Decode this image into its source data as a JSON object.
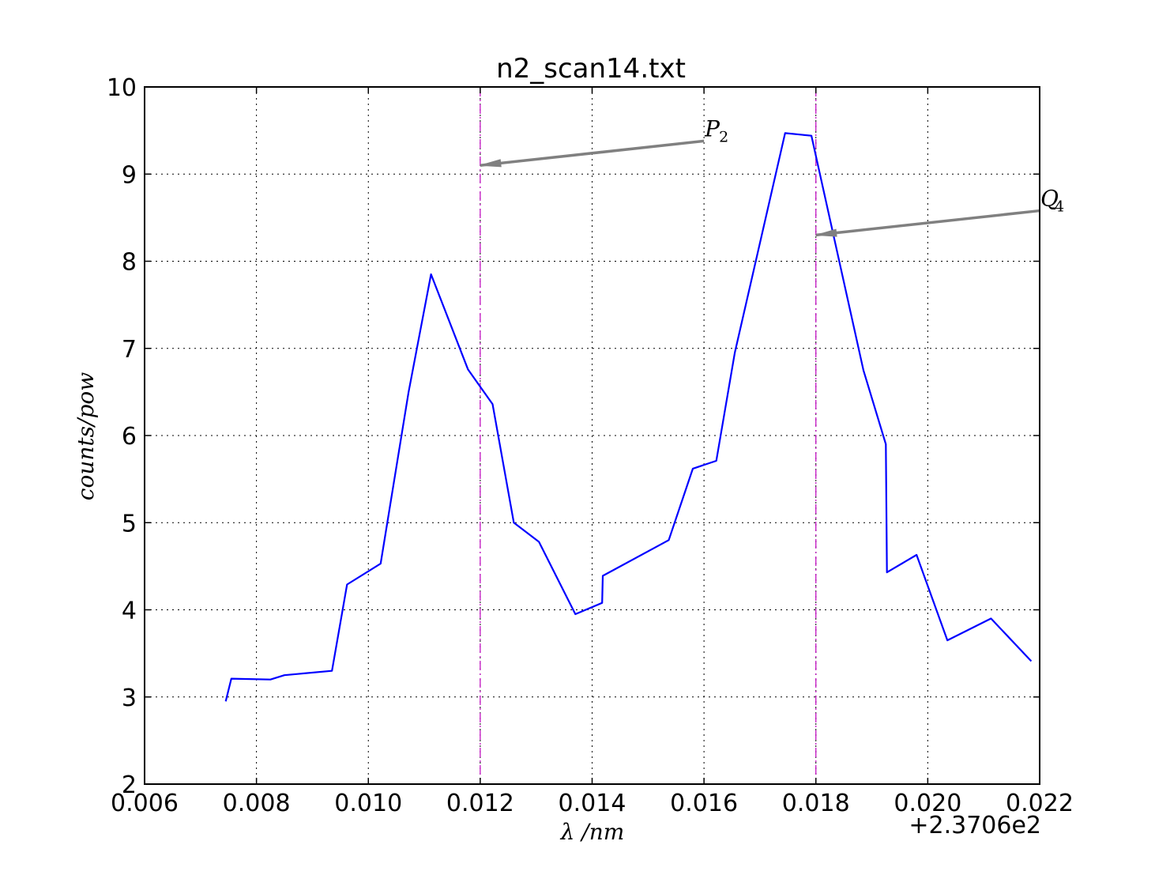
{
  "chart_data": {
    "type": "line",
    "title": "n2_scan14.txt",
    "xlabel": "λ /nm",
    "ylabel": "counts/pow",
    "x_offset_label": "+2.3706e2",
    "xlim": [
      0.006,
      0.022
    ],
    "ylim": [
      2,
      10
    ],
    "x_ticks": [
      "0.006",
      "0.008",
      "0.010",
      "0.012",
      "0.014",
      "0.016",
      "0.018",
      "0.020",
      "0.022"
    ],
    "y_ticks": [
      "2",
      "3",
      "4",
      "5",
      "6",
      "7",
      "8",
      "9",
      "10"
    ],
    "grid": true,
    "line_color": "#0000ff",
    "series": [
      {
        "x": [
          0.00745,
          0.00755,
          0.00825,
          0.0085,
          0.00935,
          0.00962,
          0.01022,
          0.01072,
          0.01112,
          0.01178,
          0.01222,
          0.0126,
          0.01305,
          0.0137,
          0.01418,
          0.01419,
          0.01537,
          0.0158,
          0.01622,
          0.01655,
          0.01745,
          0.01792,
          0.01885,
          0.01925,
          0.01927,
          0.0198,
          0.02035,
          0.02113,
          0.02185
        ],
        "y": [
          2.95,
          3.21,
          3.2,
          3.25,
          3.3,
          4.29,
          4.53,
          6.5,
          7.85,
          6.76,
          6.36,
          5.0,
          4.78,
          3.95,
          4.08,
          4.39,
          4.8,
          5.62,
          5.71,
          6.95,
          9.47,
          9.44,
          6.75,
          5.9,
          4.43,
          4.63,
          3.65,
          3.9,
          3.41
        ]
      }
    ],
    "vlines": [
      {
        "x": 0.012,
        "color": "#bf00bf",
        "style": "dash-dot"
      },
      {
        "x": 0.018,
        "color": "#bf00bf",
        "style": "dash-dot"
      }
    ],
    "annotations": [
      {
        "label": "P",
        "subscript": "2",
        "text_x": 0.016,
        "text_y": 9.38,
        "arrow_to_x": 0.012,
        "arrow_to_y": 9.1,
        "color": "#808080"
      },
      {
        "label": "Q",
        "subscript": "4",
        "text_x": 0.022,
        "text_y": 8.58,
        "arrow_to_x": 0.018,
        "arrow_to_y": 8.3,
        "color": "#808080"
      }
    ]
  }
}
